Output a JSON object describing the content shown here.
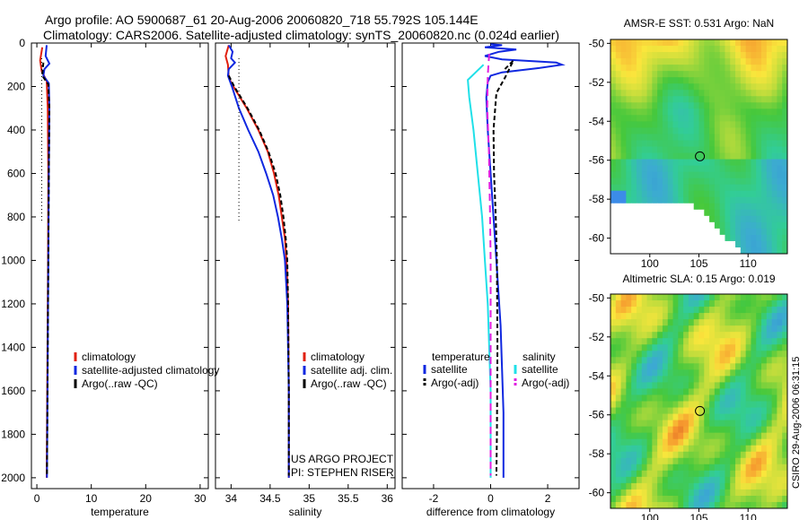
{
  "header": {
    "line1": "Argo profile: AO 5900687_61 20-Aug-2006 20060820_718 55.792S 105.144E",
    "line2": "Climatology: CARS2006. Satellite-adjusted climatology: synTS_20060820.nc (0.024d earlier)"
  },
  "stamp": "CSIRO 29-Aug-2006 06:31:15",
  "project": {
    "line1": "US ARGO PROJECT",
    "line2": "PI: STEPHEN RISER"
  },
  "colors": {
    "climatology": "#e02010",
    "satellite": "#1028e0",
    "argo": "#000000",
    "sal_satellite": "#20e0e8",
    "sal_argo": "#e020e0"
  },
  "chart_data": [
    {
      "type": "line",
      "name": "temperature-profile",
      "xlabel": "temperature",
      "ylabel": "",
      "xlim": [
        -1,
        31.5
      ],
      "ylim": [
        2050,
        0
      ],
      "xticks": [
        0,
        10,
        20,
        30
      ],
      "xtick_labels": [
        "0",
        "10",
        "20",
        "30"
      ],
      "yticks": [
        0,
        200,
        400,
        600,
        800,
        1000,
        1200,
        1400,
        1600,
        1800,
        2000
      ],
      "ytick_labels": [
        "0",
        "200",
        "400",
        "600",
        "800",
        "1000",
        "1200",
        "1400",
        "1600",
        "1800",
        "2000"
      ],
      "legend": [
        "climatology",
        "satellite-adjusted climatology",
        "Argo(..raw -QC)"
      ],
      "series": [
        {
          "name": "climatology",
          "color_key": "climatology",
          "dash": "",
          "points": [
            [
              1.0,
              20
            ],
            [
              0.6,
              80
            ],
            [
              0.9,
              130
            ],
            [
              1.8,
              175
            ],
            [
              2.0,
              300
            ],
            [
              2.1,
              600
            ],
            [
              2.05,
              1000
            ],
            [
              1.95,
              1400
            ],
            [
              1.85,
              1800
            ],
            [
              1.8,
              2000
            ]
          ]
        },
        {
          "name": "satellite",
          "color_key": "satellite",
          "dash": "",
          "points": [
            [
              1.8,
              10
            ],
            [
              1.6,
              60
            ],
            [
              2.3,
              95
            ],
            [
              1.4,
              120
            ],
            [
              1.2,
              150
            ],
            [
              2.2,
              185
            ],
            [
              2.3,
              300
            ],
            [
              2.2,
              600
            ],
            [
              2.1,
              1000
            ],
            [
              2.0,
              1400
            ],
            [
              1.9,
              1800
            ],
            [
              1.85,
              2000
            ]
          ]
        },
        {
          "name": "argo",
          "color_key": "argo",
          "dash": "5,3",
          "points": [
            [
              1.2,
              90
            ],
            [
              1.0,
              150
            ],
            [
              2.1,
              190
            ],
            [
              2.3,
              300
            ],
            [
              2.2,
              600
            ],
            [
              2.1,
              1000
            ],
            [
              2.0,
              1400
            ],
            [
              1.9,
              1800
            ],
            [
              1.85,
              1990
            ]
          ]
        },
        {
          "name": "reference",
          "color_key": "argo",
          "dash": "1,3",
          "points": [
            [
              0.9,
              70
            ],
            [
              0.9,
              820
            ]
          ]
        }
      ]
    },
    {
      "type": "line",
      "name": "salinity-profile",
      "xlabel": "salinity",
      "xlim": [
        33.8,
        36.1
      ],
      "ylim": [
        2050,
        0
      ],
      "xticks": [
        34,
        34.5,
        35,
        35.5,
        36
      ],
      "xtick_labels": [
        "34",
        "34.5",
        "35",
        "35.5",
        "36"
      ],
      "legend": [
        "climatology",
        "satellite adj. clim.",
        "Argo(..raw -QC)"
      ],
      "series": [
        {
          "name": "climatology",
          "color_key": "climatology",
          "dash": "",
          "points": [
            [
              33.97,
              10
            ],
            [
              33.93,
              60
            ],
            [
              33.96,
              100
            ],
            [
              33.97,
              160
            ],
            [
              34.03,
              200
            ],
            [
              34.2,
              300
            ],
            [
              34.35,
              400
            ],
            [
              34.47,
              500
            ],
            [
              34.55,
              600
            ],
            [
              34.61,
              700
            ],
            [
              34.65,
              800
            ],
            [
              34.69,
              900
            ],
            [
              34.71,
              1000
            ],
            [
              34.73,
              1200
            ],
            [
              34.74,
              1600
            ],
            [
              34.74,
              2000
            ]
          ]
        },
        {
          "name": "satellite",
          "color_key": "satellite",
          "dash": "",
          "points": [
            [
              33.97,
              10
            ],
            [
              34.02,
              40
            ],
            [
              34.0,
              70
            ],
            [
              34.05,
              90
            ],
            [
              33.97,
              120
            ],
            [
              33.96,
              150
            ],
            [
              34.01,
              200
            ],
            [
              34.1,
              300
            ],
            [
              34.22,
              400
            ],
            [
              34.35,
              500
            ],
            [
              34.45,
              600
            ],
            [
              34.54,
              700
            ],
            [
              34.6,
              800
            ],
            [
              34.65,
              900
            ],
            [
              34.69,
              1000
            ],
            [
              34.72,
              1200
            ],
            [
              34.74,
              1600
            ],
            [
              34.74,
              2000
            ]
          ]
        },
        {
          "name": "argo",
          "color_key": "argo",
          "dash": "5,3",
          "points": [
            [
              33.97,
              150
            ],
            [
              34.04,
              200
            ],
            [
              34.21,
              300
            ],
            [
              34.36,
              400
            ],
            [
              34.48,
              500
            ],
            [
              34.57,
              600
            ],
            [
              34.63,
              700
            ],
            [
              34.67,
              800
            ],
            [
              34.7,
              900
            ],
            [
              34.72,
              1000
            ],
            [
              34.73,
              1200
            ],
            [
              34.74,
              1600
            ],
            [
              34.74,
              1990
            ]
          ]
        },
        {
          "name": "reference",
          "color_key": "argo",
          "dash": "1,3",
          "points": [
            [
              34.1,
              70
            ],
            [
              34.1,
              820
            ]
          ]
        }
      ]
    },
    {
      "type": "line",
      "name": "difference-profile",
      "xlabel": "difference from climatology",
      "xlim": [
        -3.1,
        3.1
      ],
      "ylim": [
        2050,
        0
      ],
      "xticks": [
        -2,
        0,
        2
      ],
      "xtick_labels": [
        "-2",
        "0",
        "2"
      ],
      "legend_groups": [
        {
          "title": "temperature",
          "items": [
            "satellite",
            "Argo(-adj)"
          ]
        },
        {
          "title": "salinity",
          "items": [
            "satellite",
            "Argo(-adj)"
          ]
        }
      ],
      "series": [
        {
          "name": "temp-satellite",
          "color_key": "satellite",
          "dash": "",
          "points": [
            [
              0,
              5
            ],
            [
              0.4,
              10
            ],
            [
              -0.2,
              20
            ],
            [
              0.9,
              30
            ],
            [
              0.3,
              40
            ],
            [
              0.05,
              50
            ],
            [
              -0.2,
              60
            ],
            [
              0.4,
              75
            ],
            [
              2.3,
              90
            ],
            [
              2.5,
              100
            ],
            [
              1.7,
              115
            ],
            [
              0.4,
              135
            ],
            [
              0.0,
              150
            ],
            [
              -0.1,
              180
            ],
            [
              -0.15,
              250
            ],
            [
              -0.1,
              400
            ],
            [
              0.0,
              600
            ],
            [
              0.1,
              800
            ],
            [
              0.2,
              1000
            ],
            [
              0.35,
              1300
            ],
            [
              0.4,
              1500
            ],
            [
              0.45,
              1700
            ],
            [
              0.45,
              2000
            ]
          ]
        },
        {
          "name": "temp-argo",
          "color_key": "argo",
          "dash": "5,3",
          "points": [
            [
              0.5,
              120
            ],
            [
              0.8,
              80
            ],
            [
              0.5,
              160
            ],
            [
              0.2,
              230
            ],
            [
              0.1,
              400
            ],
            [
              0.12,
              600
            ],
            [
              0.18,
              800
            ],
            [
              0.22,
              1000
            ],
            [
              0.24,
              1400
            ],
            [
              0.22,
              1800
            ],
            [
              0.2,
              1990
            ]
          ]
        },
        {
          "name": "sal-satellite",
          "color_key": "sal_satellite",
          "dash": "",
          "points": [
            [
              -0.25,
              100
            ],
            [
              -0.8,
              170
            ],
            [
              -0.75,
              250
            ],
            [
              -0.6,
              400
            ],
            [
              -0.45,
              600
            ],
            [
              -0.3,
              800
            ],
            [
              -0.2,
              1000
            ],
            [
              -0.1,
              1200
            ],
            [
              -0.05,
              1400
            ],
            [
              0.0,
              1600
            ],
            [
              0.0,
              2000
            ]
          ]
        },
        {
          "name": "sal-argo",
          "color_key": "sal_argo",
          "dash": "8,5",
          "points": [
            [
              -0.05,
              50
            ],
            [
              -0.1,
              150
            ],
            [
              -0.12,
              300
            ],
            [
              -0.06,
              500
            ],
            [
              -0.02,
              800
            ],
            [
              0.0,
              1000
            ],
            [
              0.0,
              1600
            ],
            [
              0.0,
              1990
            ]
          ]
        }
      ]
    },
    {
      "type": "heatmap",
      "name": "sst-map",
      "title": "AMSR-E SST: 0.531 Argo: NaN",
      "xlim": [
        96,
        114
      ],
      "ylim": [
        -60.8,
        -49.8
      ],
      "xticks": [
        100,
        105,
        110
      ],
      "xtick_labels": [
        "100",
        "105",
        "110"
      ],
      "yticks": [
        -50,
        -52,
        -54,
        -56,
        -58,
        -60
      ],
      "ytick_labels": [
        "-50",
        "-52",
        "-54",
        "-56",
        "-58",
        "-60"
      ],
      "marker": [
        105.1,
        -55.8
      ]
    },
    {
      "type": "heatmap",
      "name": "sla-map",
      "title": "Altimetric SLA: 0.15 Argo: 0.019",
      "xlim": [
        96,
        114
      ],
      "ylim": [
        -60.8,
        -49.8
      ],
      "xticks": [
        100,
        105,
        110
      ],
      "xtick_labels": [
        "100",
        "105",
        "110"
      ],
      "yticks": [
        -50,
        -52,
        -54,
        -56,
        -58,
        -60
      ],
      "ytick_labels": [
        "-50",
        "-52",
        "-54",
        "-56",
        "-58",
        "-60"
      ],
      "marker": [
        105.1,
        -55.8
      ]
    }
  ]
}
